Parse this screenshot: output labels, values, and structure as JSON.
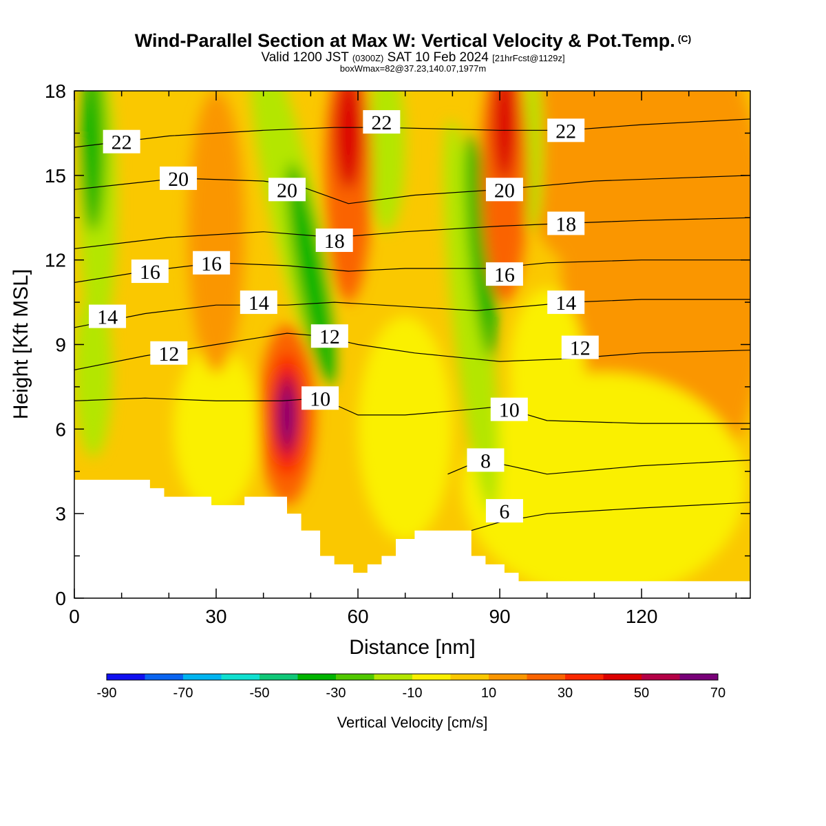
{
  "title": {
    "main": "Wind-Parallel Section at Max W: Vertical Velocity & Pot.Temp.",
    "copyright": "(C)",
    "valid_prefix": "Valid 1200 JST",
    "valid_utc": "(0300Z)",
    "valid_date": "SAT 10 Feb 2024",
    "forecast": "[21hrFcst@1129z]",
    "box": "boxWmax=82@37.23,140.07,1977m"
  },
  "chart_data": {
    "type": "heatmap",
    "xlabel": "Distance [nm]",
    "ylabel": "Height [Kft MSL]",
    "xlim": [
      0,
      143
    ],
    "ylim": [
      0,
      18
    ],
    "xticks": [
      0,
      30,
      60,
      90,
      120
    ],
    "yticks": [
      0,
      3,
      6,
      9,
      12,
      15,
      18
    ],
    "colorbar": {
      "label": "Vertical Velocity [cm/s]",
      "ticks": [
        -90,
        -70,
        -50,
        -30,
        -10,
        10,
        30,
        50,
        70
      ],
      "levels": [
        -90,
        -80,
        -70,
        -60,
        -50,
        -40,
        -30,
        -20,
        -10,
        0,
        10,
        20,
        30,
        40,
        50,
        60,
        70
      ],
      "colors": [
        "#1010f0",
        "#0a64f0",
        "#00b4f0",
        "#10e0d0",
        "#10c878",
        "#00b400",
        "#50c800",
        "#b4e600",
        "#faf000",
        "#fac800",
        "#fa9600",
        "#fa6400",
        "#fa2800",
        "#dc0000",
        "#b40046",
        "#780078"
      ]
    },
    "features": [
      {
        "name": "updraft core",
        "x": 45,
        "y": 6.5,
        "peak_w": 70
      },
      {
        "name": "upper updraft",
        "x": 58,
        "y": 16,
        "peak_w": 40
      },
      {
        "name": "upper updraft",
        "x": 91,
        "y": 16.5,
        "peak_w": 40
      },
      {
        "name": "downdraft",
        "x": 50,
        "y": 12,
        "peak_w": -35
      },
      {
        "name": "downdraft",
        "x": 86,
        "y": 12,
        "peak_w": -35
      },
      {
        "name": "downdraft",
        "x": 4,
        "y": 16,
        "peak_w": -35
      }
    ],
    "terrain_kft": [
      [
        0,
        4.2
      ],
      [
        16,
        4.2
      ],
      [
        16,
        3.9
      ],
      [
        19,
        3.9
      ],
      [
        19,
        3.6
      ],
      [
        29,
        3.6
      ],
      [
        29,
        3.3
      ],
      [
        36,
        3.3
      ],
      [
        36,
        3.6
      ],
      [
        45,
        3.6
      ],
      [
        45,
        3.0
      ],
      [
        48,
        3.0
      ],
      [
        48,
        2.4
      ],
      [
        52,
        2.4
      ],
      [
        52,
        1.5
      ],
      [
        55,
        1.5
      ],
      [
        55,
        1.2
      ],
      [
        59,
        1.2
      ],
      [
        59,
        0.9
      ],
      [
        62,
        0.9
      ],
      [
        62,
        1.2
      ],
      [
        65,
        1.2
      ],
      [
        65,
        1.5
      ],
      [
        68,
        1.5
      ],
      [
        68,
        2.1
      ],
      [
        72,
        2.1
      ],
      [
        72,
        2.4
      ],
      [
        84,
        2.4
      ],
      [
        84,
        1.5
      ],
      [
        87,
        1.5
      ],
      [
        87,
        1.2
      ],
      [
        91,
        1.2
      ],
      [
        91,
        0.9
      ],
      [
        94,
        0.9
      ],
      [
        94,
        0.6
      ],
      [
        143,
        0.6
      ]
    ],
    "theta_contours": [
      {
        "label": "6",
        "label_x": 91,
        "label_y": 3.1,
        "points": [
          [
            84,
            2.4
          ],
          [
            90,
            2.7
          ],
          [
            100,
            3.0
          ],
          [
            120,
            3.2
          ],
          [
            143,
            3.4
          ]
        ]
      },
      {
        "label": "8",
        "label_x": 87,
        "label_y": 4.9,
        "points": [
          [
            79,
            4.4
          ],
          [
            86,
            4.9
          ],
          [
            92,
            4.7
          ],
          [
            100,
            4.4
          ],
          [
            120,
            4.7
          ],
          [
            143,
            4.9
          ]
        ]
      },
      {
        "label": "10",
        "label_x": 52,
        "label_y": 7.1,
        "points": [
          [
            0,
            7.0
          ],
          [
            15,
            7.1
          ],
          [
            30,
            7.0
          ],
          [
            44,
            7.0
          ],
          [
            52,
            7.1
          ],
          [
            60,
            6.5
          ],
          [
            70,
            6.5
          ],
          [
            84,
            6.7
          ],
          [
            90,
            6.8
          ],
          [
            100,
            6.3
          ],
          [
            120,
            6.2
          ],
          [
            143,
            6.2
          ]
        ]
      },
      {
        "label": "10",
        "label_x": 92,
        "label_y": 6.7,
        "points": []
      },
      {
        "label": "12",
        "label_x": 20,
        "label_y": 8.7,
        "points": [
          [
            0,
            8.1
          ],
          [
            15,
            8.6
          ],
          [
            30,
            9.0
          ],
          [
            45,
            9.4
          ],
          [
            52,
            9.3
          ],
          [
            60,
            9.0
          ],
          [
            72,
            8.7
          ],
          [
            90,
            8.4
          ],
          [
            105,
            8.5
          ],
          [
            120,
            8.7
          ],
          [
            143,
            8.8
          ]
        ]
      },
      {
        "label": "12",
        "label_x": 54,
        "label_y": 9.3,
        "points": []
      },
      {
        "label": "12",
        "label_x": 107,
        "label_y": 8.9,
        "points": []
      },
      {
        "label": "14",
        "label_x": 7,
        "label_y": 10.0,
        "points": [
          [
            0,
            9.6
          ],
          [
            15,
            10.1
          ],
          [
            30,
            10.4
          ],
          [
            45,
            10.4
          ],
          [
            55,
            10.5
          ],
          [
            65,
            10.4
          ],
          [
            85,
            10.2
          ],
          [
            105,
            10.5
          ],
          [
            120,
            10.6
          ],
          [
            143,
            10.6
          ]
        ]
      },
      {
        "label": "14",
        "label_x": 39,
        "label_y": 10.5,
        "points": []
      },
      {
        "label": "14",
        "label_x": 104,
        "label_y": 10.5,
        "points": []
      },
      {
        "label": "16",
        "label_x": 16,
        "label_y": 11.6,
        "points": [
          [
            0,
            11.2
          ],
          [
            15,
            11.6
          ],
          [
            30,
            11.9
          ],
          [
            45,
            11.8
          ],
          [
            58,
            11.6
          ],
          [
            70,
            11.7
          ],
          [
            88,
            11.7
          ],
          [
            100,
            11.9
          ],
          [
            120,
            12.0
          ],
          [
            143,
            12.0
          ]
        ]
      },
      {
        "label": "16",
        "label_x": 29,
        "label_y": 11.9,
        "points": []
      },
      {
        "label": "16",
        "label_x": 91,
        "label_y": 11.5,
        "points": []
      },
      {
        "label": "18",
        "label_x": 55,
        "label_y": 12.7,
        "points": [
          [
            0,
            12.4
          ],
          [
            20,
            12.8
          ],
          [
            40,
            13.0
          ],
          [
            55,
            12.8
          ],
          [
            70,
            13.0
          ],
          [
            90,
            13.2
          ],
          [
            104,
            13.3
          ],
          [
            120,
            13.4
          ],
          [
            143,
            13.5
          ]
        ]
      },
      {
        "label": "18",
        "label_x": 104,
        "label_y": 13.3,
        "points": []
      },
      {
        "label": "20",
        "label_x": 22,
        "label_y": 14.9,
        "points": [
          [
            0,
            14.5
          ],
          [
            22,
            14.9
          ],
          [
            40,
            14.8
          ],
          [
            48,
            14.6
          ],
          [
            58,
            14.0
          ],
          [
            72,
            14.3
          ],
          [
            90,
            14.5
          ],
          [
            110,
            14.8
          ],
          [
            143,
            15.0
          ]
        ]
      },
      {
        "label": "20",
        "label_x": 45,
        "label_y": 14.5,
        "points": []
      },
      {
        "label": "20",
        "label_x": 91,
        "label_y": 14.5,
        "points": []
      },
      {
        "label": "22",
        "label_x": 10,
        "label_y": 16.2,
        "points": [
          [
            0,
            16.0
          ],
          [
            20,
            16.4
          ],
          [
            40,
            16.6
          ],
          [
            55,
            16.7
          ],
          [
            65,
            16.7
          ],
          [
            90,
            16.6
          ],
          [
            104,
            16.6
          ],
          [
            120,
            16.8
          ],
          [
            143,
            17.0
          ]
        ]
      },
      {
        "label": "22",
        "label_x": 65,
        "label_y": 16.9,
        "points": []
      },
      {
        "label": "22",
        "label_x": 104,
        "label_y": 16.6,
        "points": []
      }
    ]
  }
}
